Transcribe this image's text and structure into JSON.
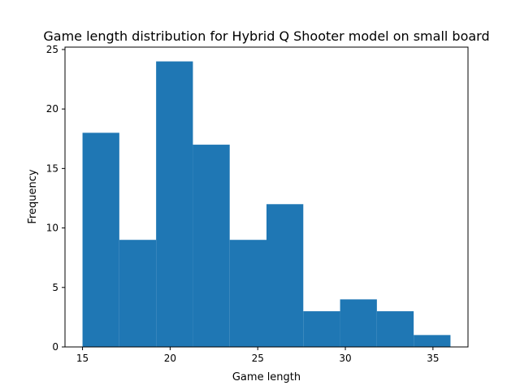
{
  "chart_data": {
    "type": "bar",
    "title": "Game length distribution for Hybrid Q Shooter model on small board",
    "xlabel": "Game length",
    "ylabel": "Frequency",
    "xlim": [
      14,
      37
    ],
    "ylim": [
      0,
      25.2
    ],
    "xticks": [
      15,
      20,
      25,
      30,
      35
    ],
    "yticks": [
      0,
      5,
      10,
      15,
      20,
      25
    ],
    "bin_edges": [
      15,
      17.1,
      19.2,
      21.3,
      23.4,
      25.5,
      27.6,
      29.7,
      31.8,
      33.9,
      36
    ],
    "values": [
      18,
      9,
      24,
      17,
      9,
      12,
      3,
      4,
      3,
      1
    ],
    "color": "#1f77b4",
    "grid": false,
    "legend": "none"
  }
}
